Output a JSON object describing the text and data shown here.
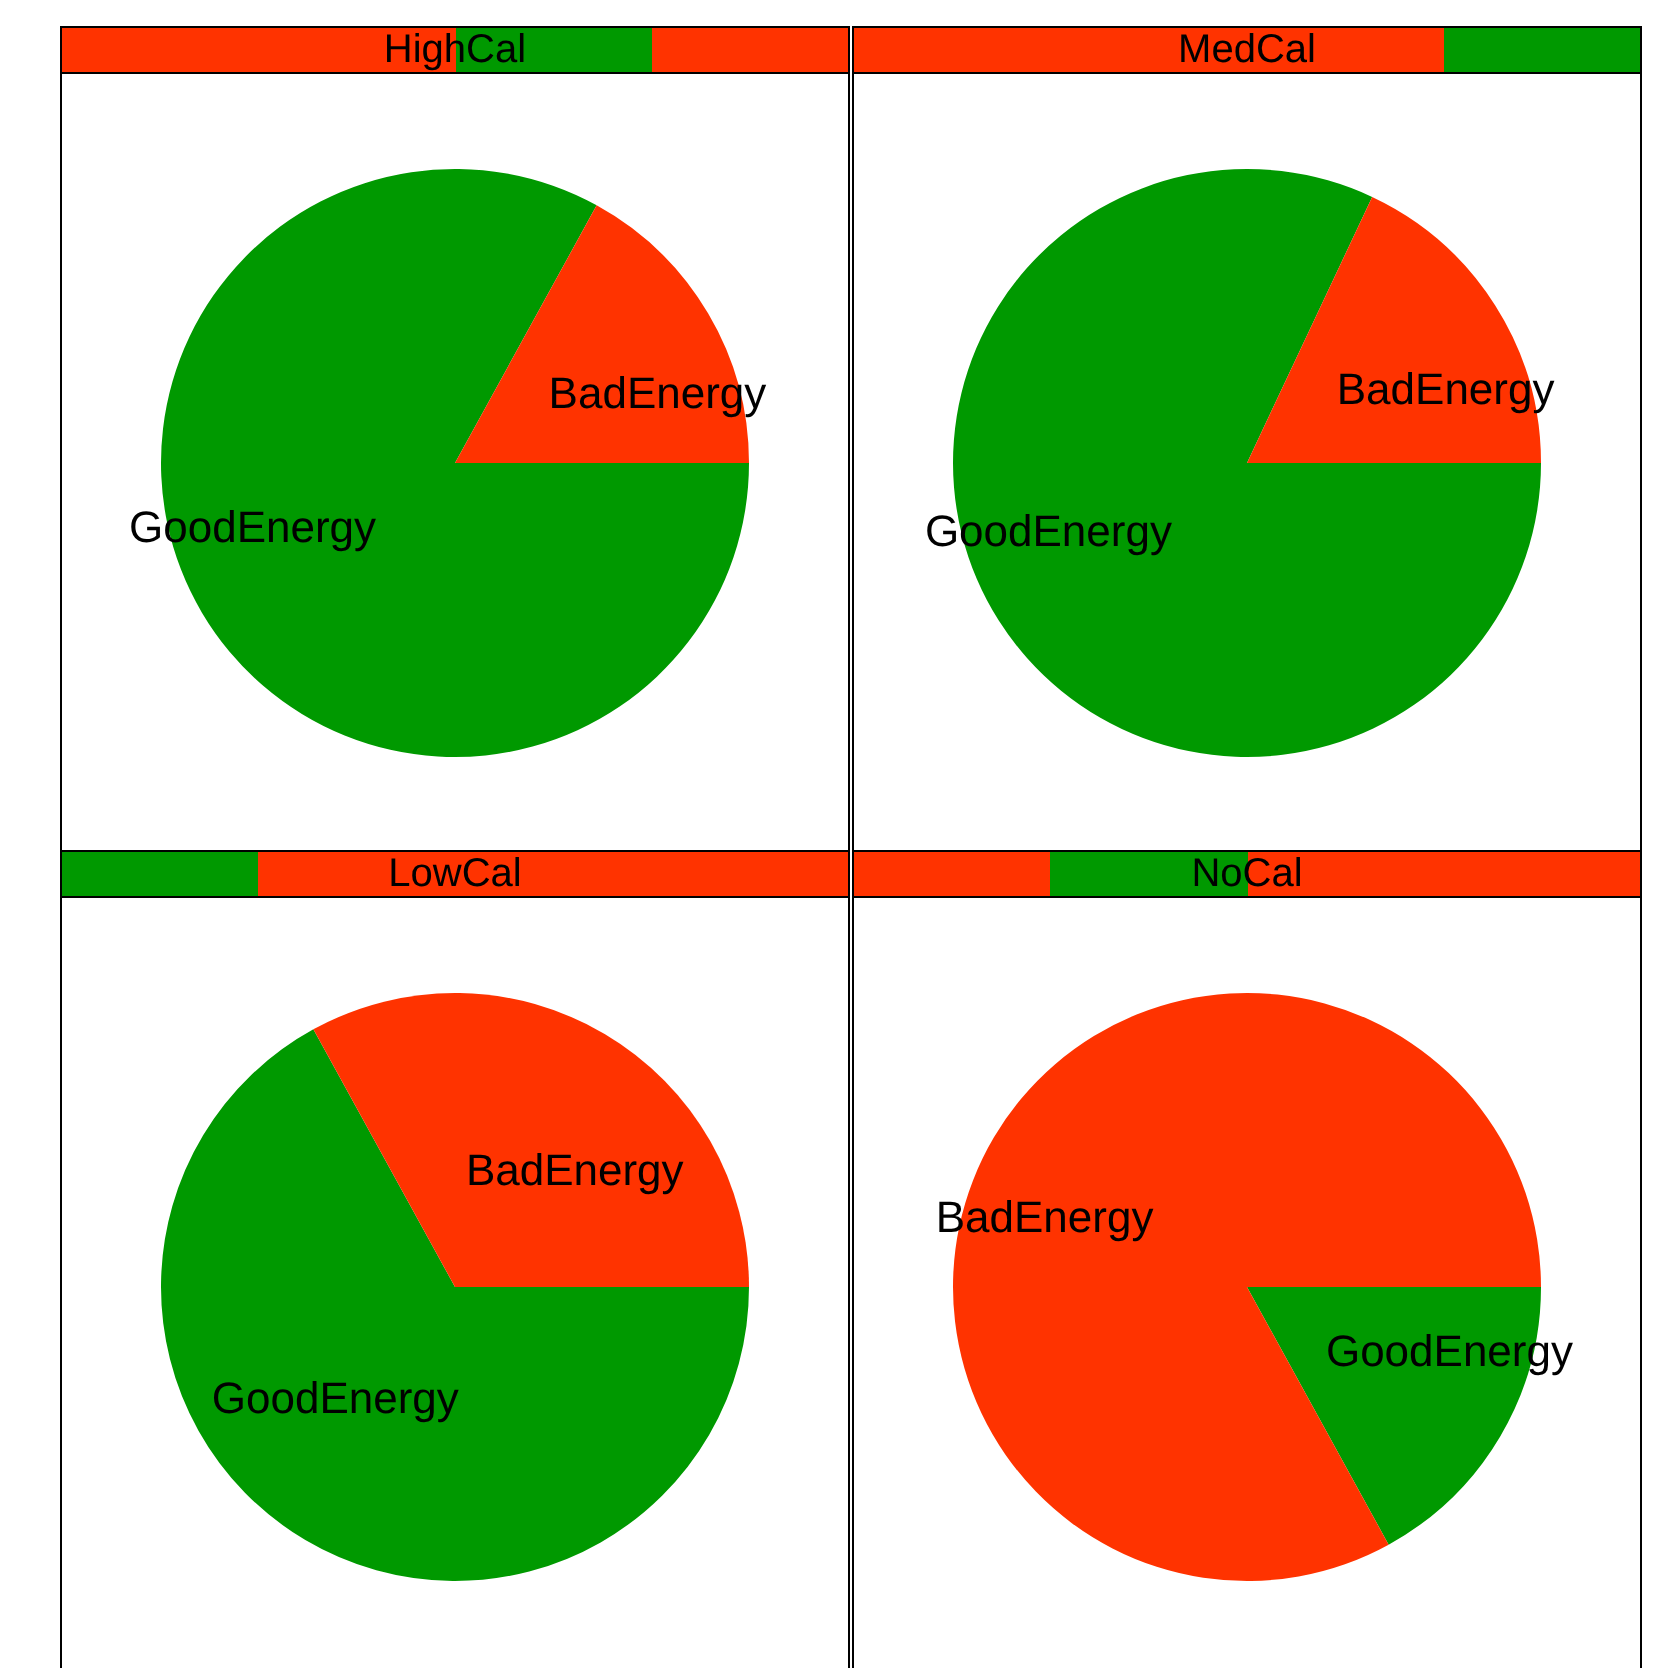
{
  "chart_data": [
    {
      "type": "pie",
      "title": "HighCal",
      "categories": [
        "BadEnergy",
        "GoodEnergy"
      ],
      "values": [
        17,
        83
      ],
      "colors": [
        "#ff3300",
        "#009900"
      ],
      "legend": false
    },
    {
      "type": "pie",
      "title": "MedCal",
      "categories": [
        "BadEnergy",
        "GoodEnergy"
      ],
      "values": [
        18,
        82
      ],
      "colors": [
        "#ff3300",
        "#009900"
      ],
      "legend": false
    },
    {
      "type": "pie",
      "title": "LowCal",
      "categories": [
        "BadEnergy",
        "GoodEnergy"
      ],
      "values": [
        33,
        67
      ],
      "colors": [
        "#ff3300",
        "#009900"
      ],
      "legend": false
    },
    {
      "type": "pie",
      "title": "NoCal",
      "categories": [
        "BadEnergy",
        "GoodEnergy"
      ],
      "values": [
        83,
        17
      ],
      "colors": [
        "#ff3300",
        "#009900"
      ],
      "legend": false
    }
  ]
}
